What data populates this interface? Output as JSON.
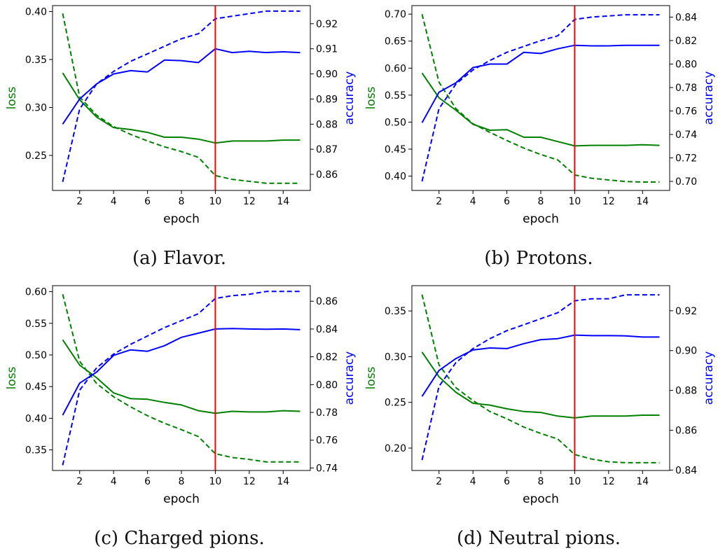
{
  "chart_data": [
    {
      "type": "line",
      "caption": "(a) Flavor.",
      "xlabel": "epoch",
      "ylabel_left": "loss",
      "ylabel_right": "accuracy",
      "x": [
        1,
        2,
        3,
        4,
        5,
        6,
        7,
        8,
        9,
        10,
        11,
        12,
        13,
        14,
        15
      ],
      "xlim": [
        0.4,
        15.6
      ],
      "xticks": [
        2,
        4,
        6,
        8,
        10,
        12,
        14
      ],
      "ylim_left": [
        0.2135,
        0.4062
      ],
      "yticks_left": [
        "0.25",
        "0.30",
        "0.35",
        "0.40"
      ],
      "ylim_right": [
        0.8536,
        0.9272
      ],
      "yticks_right": [
        "0.86",
        "0.87",
        "0.88",
        "0.89",
        "0.90",
        "0.91",
        "0.92"
      ],
      "vline_x": 10,
      "series": [
        {
          "axis": "left",
          "color": "#008000",
          "dash": false,
          "values": [
            0.336,
            0.308,
            0.29,
            0.279,
            0.277,
            0.274,
            0.269,
            0.269,
            0.267,
            0.263,
            0.265,
            0.265,
            0.265,
            0.266,
            0.266
          ]
        },
        {
          "axis": "left",
          "color": "#008000",
          "dash": true,
          "values": [
            0.398,
            0.311,
            0.292,
            0.28,
            0.272,
            0.265,
            0.259,
            0.254,
            0.248,
            0.229,
            0.225,
            0.223,
            0.221,
            0.221,
            0.221
          ]
        },
        {
          "axis": "right",
          "color": "#0000ff",
          "dash": false,
          "values": [
            0.88,
            0.89,
            0.896,
            0.9,
            0.9013,
            0.9008,
            0.9055,
            0.9053,
            0.9045,
            0.91,
            0.9085,
            0.909,
            0.9085,
            0.9088,
            0.9085
          ]
        },
        {
          "axis": "right",
          "color": "#0000ff",
          "dash": true,
          "values": [
            0.857,
            0.886,
            0.896,
            0.901,
            0.905,
            0.908,
            0.911,
            0.914,
            0.916,
            0.922,
            0.923,
            0.924,
            0.925,
            0.925,
            0.925
          ]
        }
      ]
    },
    {
      "type": "line",
      "caption": "(b) Protons.",
      "xlabel": "epoch",
      "ylabel_left": "loss",
      "ylabel_right": "accuracy",
      "x": [
        1,
        2,
        3,
        4,
        5,
        6,
        7,
        8,
        9,
        10,
        11,
        12,
        13,
        14,
        15
      ],
      "xlim": [
        0.4,
        15.6
      ],
      "xticks": [
        2,
        4,
        6,
        8,
        10,
        12,
        14
      ],
      "ylim_left": [
        0.3735,
        0.7158
      ],
      "yticks_left": [
        "0.40",
        "0.45",
        "0.50",
        "0.55",
        "0.60",
        "0.65",
        "0.70"
      ],
      "ylim_right": [
        0.6923,
        0.8498
      ],
      "yticks_right": [
        "0.70",
        "0.72",
        "0.74",
        "0.76",
        "0.78",
        "0.80",
        "0.82",
        "0.84"
      ],
      "vline_x": 10,
      "series": [
        {
          "axis": "left",
          "color": "#008000",
          "dash": false,
          "values": [
            0.591,
            0.545,
            0.522,
            0.496,
            0.485,
            0.486,
            0.472,
            0.472,
            0.464,
            0.456,
            0.457,
            0.457,
            0.457,
            0.458,
            0.457
          ]
        },
        {
          "axis": "left",
          "color": "#008000",
          "dash": true,
          "values": [
            0.7,
            0.574,
            0.525,
            0.497,
            0.481,
            0.466,
            0.452,
            0.44,
            0.43,
            0.402,
            0.396,
            0.393,
            0.39,
            0.389,
            0.389
          ]
        },
        {
          "axis": "right",
          "color": "#0000ff",
          "dash": false,
          "values": [
            0.75,
            0.776,
            0.784,
            0.797,
            0.8,
            0.8,
            0.81,
            0.809,
            0.813,
            0.816,
            0.8155,
            0.8155,
            0.816,
            0.816,
            0.816
          ]
        },
        {
          "axis": "right",
          "color": "#0000ff",
          "dash": true,
          "values": [
            0.7,
            0.762,
            0.783,
            0.795,
            0.803,
            0.81,
            0.815,
            0.82,
            0.824,
            0.838,
            0.84,
            0.841,
            0.842,
            0.842,
            0.842
          ]
        }
      ]
    },
    {
      "type": "line",
      "caption": "(c) Charged pions.",
      "xlabel": "epoch",
      "ylabel_left": "loss",
      "ylabel_right": "accuracy",
      "x": [
        1,
        2,
        3,
        4,
        5,
        6,
        7,
        8,
        9,
        10,
        11,
        12,
        13,
        14,
        15
      ],
      "xlim": [
        0.4,
        15.6
      ],
      "xticks": [
        2,
        4,
        6,
        8,
        10,
        12,
        14
      ],
      "ylim_left": [
        0.3175,
        0.6095
      ],
      "yticks_left": [
        "0.35",
        "0.40",
        "0.45",
        "0.50",
        "0.55",
        "0.60"
      ],
      "ylim_right": [
        0.7382,
        0.8712
      ],
      "yticks_right": [
        "0.74",
        "0.76",
        "0.78",
        "0.80",
        "0.82",
        "0.84",
        "0.86"
      ],
      "vline_x": 10,
      "series": [
        {
          "axis": "left",
          "color": "#008000",
          "dash": false,
          "values": [
            0.524,
            0.484,
            0.464,
            0.44,
            0.431,
            0.43,
            0.425,
            0.421,
            0.412,
            0.408,
            0.411,
            0.41,
            0.41,
            0.412,
            0.411
          ]
        },
        {
          "axis": "left",
          "color": "#008000",
          "dash": true,
          "values": [
            0.596,
            0.49,
            0.455,
            0.434,
            0.418,
            0.404,
            0.392,
            0.382,
            0.371,
            0.344,
            0.338,
            0.335,
            0.331,
            0.331,
            0.331
          ]
        },
        {
          "axis": "right",
          "color": "#0000ff",
          "dash": false,
          "values": [
            0.778,
            0.801,
            0.809,
            0.821,
            0.825,
            0.824,
            0.828,
            0.834,
            0.837,
            0.84,
            0.8403,
            0.84,
            0.8398,
            0.84,
            0.8395
          ]
        },
        {
          "axis": "right",
          "color": "#0000ff",
          "dash": true,
          "values": [
            0.742,
            0.796,
            0.812,
            0.822,
            0.829,
            0.835,
            0.841,
            0.846,
            0.851,
            0.862,
            0.864,
            0.865,
            0.867,
            0.867,
            0.867
          ]
        }
      ]
    },
    {
      "type": "line",
      "caption": "(d) Neutral pions.",
      "xlabel": "epoch",
      "ylabel_left": "loss",
      "ylabel_right": "accuracy",
      "x": [
        1,
        2,
        3,
        4,
        5,
        6,
        7,
        8,
        9,
        10,
        11,
        12,
        13,
        14,
        15
      ],
      "xlim": [
        0.4,
        15.6
      ],
      "xticks": [
        2,
        4,
        6,
        8,
        10,
        12,
        14
      ],
      "ylim_left": [
        0.1755,
        0.3777
      ],
      "yticks_left": [
        "0.20",
        "0.25",
        "0.30",
        "0.35"
      ],
      "ylim_right": [
        0.8398,
        0.9326
      ],
      "yticks_right": [
        "0.84",
        "0.86",
        "0.88",
        "0.90",
        "0.92"
      ],
      "vline_x": 10,
      "series": [
        {
          "axis": "left",
          "color": "#008000",
          "dash": false,
          "values": [
            0.305,
            0.278,
            0.261,
            0.249,
            0.247,
            0.243,
            0.24,
            0.239,
            0.235,
            0.233,
            0.235,
            0.235,
            0.235,
            0.236,
            0.236
          ]
        },
        {
          "axis": "left",
          "color": "#008000",
          "dash": true,
          "values": [
            0.368,
            0.291,
            0.266,
            0.252,
            0.24,
            0.232,
            0.223,
            0.216,
            0.21,
            0.193,
            0.188,
            0.185,
            0.184,
            0.184,
            0.184
          ]
        },
        {
          "axis": "right",
          "color": "#0000ff",
          "dash": false,
          "values": [
            0.877,
            0.89,
            0.896,
            0.9003,
            0.9013,
            0.901,
            0.9035,
            0.9055,
            0.906,
            0.9078,
            0.9075,
            0.9075,
            0.9074,
            0.9068,
            0.9068
          ]
        },
        {
          "axis": "right",
          "color": "#0000ff",
          "dash": true,
          "values": [
            0.845,
            0.882,
            0.894,
            0.901,
            0.906,
            0.91,
            0.913,
            0.916,
            0.919,
            0.925,
            0.926,
            0.926,
            0.928,
            0.928,
            0.928
          ]
        }
      ]
    }
  ]
}
